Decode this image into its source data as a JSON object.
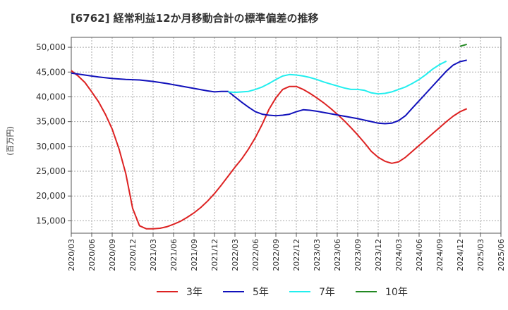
{
  "chart_data": {
    "type": "line",
    "title": "[6762]  経常利益12か月移動合計の標準偏差の推移",
    "ylabel": "(百万円)",
    "xlabel": "",
    "y_ticks": [
      "15,000",
      "20,000",
      "25,000",
      "30,000",
      "35,000",
      "40,000",
      "45,000",
      "50,000"
    ],
    "ylim": [
      12500,
      52000
    ],
    "x_ticks": [
      "2020/03",
      "2020/06",
      "2020/09",
      "2020/12",
      "2021/03",
      "2021/06",
      "2021/09",
      "2021/12",
      "2022/03",
      "2022/06",
      "2022/09",
      "2022/12",
      "2023/03",
      "2023/06",
      "2023/09",
      "2023/12",
      "2024/03",
      "2024/06",
      "2024/09",
      "2024/12",
      "2025/03",
      "2025/06"
    ],
    "x_range": [
      "2020/03",
      "2025/06"
    ],
    "grid": true,
    "legend_position": "bottom",
    "series": [
      {
        "name": "3年",
        "color": "#dd2222",
        "points": [
          [
            "2020/03",
            45300
          ],
          [
            "2020/04",
            44200
          ],
          [
            "2020/05",
            42900
          ],
          [
            "2020/06",
            41000
          ],
          [
            "2020/07",
            39000
          ],
          [
            "2020/08",
            36500
          ],
          [
            "2020/09",
            33500
          ],
          [
            "2020/10",
            29500
          ],
          [
            "2020/11",
            24500
          ],
          [
            "2020/12",
            17500
          ],
          [
            "2021/01",
            14000
          ],
          [
            "2021/02",
            13400
          ],
          [
            "2021/03",
            13400
          ],
          [
            "2021/04",
            13500
          ],
          [
            "2021/05",
            13800
          ],
          [
            "2021/06",
            14300
          ],
          [
            "2021/07",
            14900
          ],
          [
            "2021/08",
            15700
          ],
          [
            "2021/09",
            16600
          ],
          [
            "2021/10",
            17700
          ],
          [
            "2021/11",
            19000
          ],
          [
            "2021/12",
            20500
          ],
          [
            "2022/01",
            22200
          ],
          [
            "2022/02",
            24000
          ],
          [
            "2022/03",
            25800
          ],
          [
            "2022/04",
            27500
          ],
          [
            "2022/05",
            29500
          ],
          [
            "2022/06",
            31800
          ],
          [
            "2022/07",
            34500
          ],
          [
            "2022/08",
            37500
          ],
          [
            "2022/09",
            39800
          ],
          [
            "2022/10",
            41500
          ],
          [
            "2022/11",
            42100
          ],
          [
            "2022/12",
            42100
          ],
          [
            "2023/01",
            41500
          ],
          [
            "2023/02",
            40700
          ],
          [
            "2023/03",
            39800
          ],
          [
            "2023/04",
            38800
          ],
          [
            "2023/05",
            37700
          ],
          [
            "2023/06",
            36500
          ],
          [
            "2023/07",
            35200
          ],
          [
            "2023/08",
            33800
          ],
          [
            "2023/09",
            32300
          ],
          [
            "2023/10",
            30700
          ],
          [
            "2023/11",
            29000
          ],
          [
            "2023/12",
            27800
          ],
          [
            "2024/01",
            27000
          ],
          [
            "2024/02",
            26600
          ],
          [
            "2024/03",
            26900
          ],
          [
            "2024/04",
            27800
          ],
          [
            "2024/05",
            29000
          ],
          [
            "2024/06",
            30200
          ],
          [
            "2024/07",
            31400
          ],
          [
            "2024/08",
            32600
          ],
          [
            "2024/09",
            33800
          ],
          [
            "2024/10",
            35000
          ],
          [
            "2024/11",
            36100
          ],
          [
            "2024/12",
            37000
          ],
          [
            "2025/01",
            37600
          ]
        ]
      },
      {
        "name": "5年",
        "color": "#1111bb",
        "points": [
          [
            "2020/03",
            44800
          ],
          [
            "2020/05",
            44400
          ],
          [
            "2020/07",
            44000
          ],
          [
            "2020/09",
            43700
          ],
          [
            "2020/11",
            43500
          ],
          [
            "2021/01",
            43400
          ],
          [
            "2021/03",
            43100
          ],
          [
            "2021/05",
            42700
          ],
          [
            "2021/07",
            42200
          ],
          [
            "2021/09",
            41700
          ],
          [
            "2021/11",
            41200
          ],
          [
            "2021/12",
            41000
          ],
          [
            "2022/01",
            41100
          ],
          [
            "2022/02",
            41100
          ],
          [
            "2022/03",
            40000
          ],
          [
            "2022/04",
            38900
          ],
          [
            "2022/05",
            37900
          ],
          [
            "2022/06",
            37000
          ],
          [
            "2022/07",
            36500
          ],
          [
            "2022/08",
            36300
          ],
          [
            "2022/09",
            36200
          ],
          [
            "2022/10",
            36300
          ],
          [
            "2022/11",
            36500
          ],
          [
            "2022/12",
            37000
          ],
          [
            "2023/01",
            37400
          ],
          [
            "2023/02",
            37300
          ],
          [
            "2023/03",
            37100
          ],
          [
            "2023/05",
            36600
          ],
          [
            "2023/07",
            36100
          ],
          [
            "2023/09",
            35600
          ],
          [
            "2023/11",
            35000
          ],
          [
            "2023/12",
            34700
          ],
          [
            "2024/01",
            34600
          ],
          [
            "2024/02",
            34700
          ],
          [
            "2024/03",
            35200
          ],
          [
            "2024/04",
            36200
          ],
          [
            "2024/05",
            37700
          ],
          [
            "2024/06",
            39200
          ],
          [
            "2024/07",
            40700
          ],
          [
            "2024/08",
            42200
          ],
          [
            "2024/09",
            43700
          ],
          [
            "2024/10",
            45200
          ],
          [
            "2024/11",
            46400
          ],
          [
            "2024/12",
            47100
          ],
          [
            "2025/01",
            47400
          ]
        ]
      },
      {
        "name": "7年",
        "color": "#22eeee",
        "points": [
          [
            "2022/02",
            41000
          ],
          [
            "2022/03",
            40900
          ],
          [
            "2022/05",
            41100
          ],
          [
            "2022/06",
            41500
          ],
          [
            "2022/07",
            42000
          ],
          [
            "2022/08",
            42700
          ],
          [
            "2022/09",
            43500
          ],
          [
            "2022/10",
            44200
          ],
          [
            "2022/11",
            44500
          ],
          [
            "2022/12",
            44400
          ],
          [
            "2023/01",
            44200
          ],
          [
            "2023/02",
            43900
          ],
          [
            "2023/03",
            43500
          ],
          [
            "2023/04",
            43000
          ],
          [
            "2023/05",
            42600
          ],
          [
            "2023/06",
            42200
          ],
          [
            "2023/07",
            41800
          ],
          [
            "2023/08",
            41500
          ],
          [
            "2023/09",
            41500
          ],
          [
            "2023/10",
            41300
          ],
          [
            "2023/11",
            40800
          ],
          [
            "2023/12",
            40600
          ],
          [
            "2024/01",
            40700
          ],
          [
            "2024/02",
            41000
          ],
          [
            "2024/03",
            41500
          ],
          [
            "2024/04",
            42000
          ],
          [
            "2024/05",
            42700
          ],
          [
            "2024/06",
            43500
          ],
          [
            "2024/07",
            44500
          ],
          [
            "2024/08",
            45600
          ],
          [
            "2024/09",
            46500
          ],
          [
            "2024/10",
            47200
          ]
        ]
      },
      {
        "name": "10年",
        "color": "#228822",
        "points": [
          [
            "2024/12",
            50200
          ],
          [
            "2025/01",
            50600
          ]
        ]
      }
    ]
  }
}
